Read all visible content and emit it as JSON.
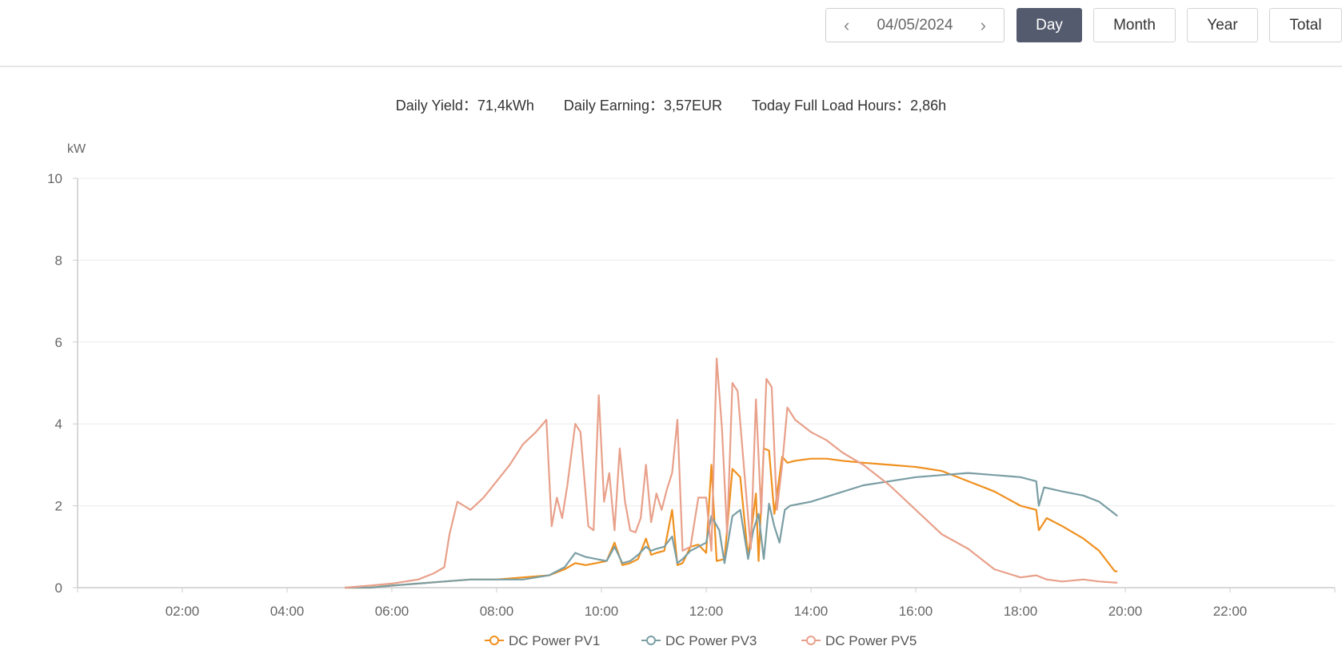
{
  "toolbar": {
    "date": "04/05/2024",
    "buttons": [
      "Day",
      "Month",
      "Year",
      "Total"
    ],
    "active": "Day"
  },
  "summary": [
    {
      "label": "Daily Yield：",
      "value": "71,4kWh"
    },
    {
      "label": "Daily Earning：",
      "value": "3,57EUR"
    },
    {
      "label": "Today Full Load Hours：",
      "value": "2,86h"
    }
  ],
  "chart_data": {
    "type": "line",
    "ylabel": "kW",
    "ylim": [
      0,
      10
    ],
    "yticks": [
      "0",
      "2",
      "4",
      "6",
      "8",
      "10"
    ],
    "xlim": [
      0,
      24
    ],
    "xticks": [
      "02:00",
      "04:00",
      "06:00",
      "08:00",
      "10:00",
      "12:00",
      "14:00",
      "16:00",
      "18:00",
      "20:00",
      "22:00"
    ],
    "grid": true,
    "legend_position": "bottom",
    "series": [
      {
        "name": "DC Power PV1",
        "color": "#f0901e",
        "x": [
          5.1,
          5.6,
          6.0,
          6.5,
          7.0,
          7.5,
          8.0,
          8.5,
          9.0,
          9.3,
          9.5,
          9.7,
          9.9,
          10.1,
          10.25,
          10.4,
          10.55,
          10.7,
          10.85,
          10.95,
          11.05,
          11.2,
          11.35,
          11.45,
          11.55,
          11.7,
          11.85,
          12.0,
          12.1,
          12.2,
          12.35,
          12.5,
          12.65,
          12.8,
          12.95,
          13.0,
          13.1,
          13.2,
          13.3,
          13.45,
          13.55,
          13.7,
          14.0,
          14.3,
          14.6,
          15.0,
          15.5,
          16.0,
          16.5,
          17.0,
          17.5,
          18.0,
          18.3,
          18.35,
          18.5,
          18.8,
          19.2,
          19.5,
          19.8,
          19.85
        ],
        "y": [
          0,
          0,
          0.05,
          0.1,
          0.15,
          0.2,
          0.2,
          0.25,
          0.3,
          0.45,
          0.6,
          0.55,
          0.6,
          0.65,
          1.1,
          0.55,
          0.6,
          0.7,
          1.2,
          0.8,
          0.85,
          0.9,
          1.9,
          0.55,
          0.6,
          1.0,
          1.05,
          0.85,
          3.0,
          0.65,
          0.7,
          2.9,
          2.7,
          0.75,
          2.3,
          0.65,
          3.4,
          3.35,
          1.8,
          3.2,
          3.05,
          3.1,
          3.15,
          3.15,
          3.1,
          3.05,
          3.0,
          2.95,
          2.85,
          2.6,
          2.35,
          2.0,
          1.9,
          1.4,
          1.7,
          1.5,
          1.2,
          0.9,
          0.4,
          0.4
        ]
      },
      {
        "name": "DC Power PV3",
        "color": "#7a9ea4",
        "x": [
          5.1,
          5.6,
          6.0,
          6.5,
          7.0,
          7.5,
          8.0,
          8.5,
          9.0,
          9.3,
          9.5,
          9.7,
          9.9,
          10.1,
          10.25,
          10.4,
          10.55,
          10.7,
          10.85,
          10.95,
          11.05,
          11.2,
          11.35,
          11.45,
          11.55,
          11.7,
          11.85,
          12.0,
          12.1,
          12.25,
          12.35,
          12.5,
          12.65,
          12.8,
          12.9,
          13.0,
          13.1,
          13.2,
          13.3,
          13.4,
          13.5,
          13.6,
          14.0,
          14.5,
          15.0,
          15.5,
          16.0,
          16.5,
          17.0,
          17.5,
          18.0,
          18.3,
          18.35,
          18.45,
          18.8,
          19.2,
          19.5,
          19.8,
          19.85
        ],
        "y": [
          0,
          0,
          0.05,
          0.1,
          0.15,
          0.2,
          0.2,
          0.2,
          0.3,
          0.5,
          0.85,
          0.75,
          0.7,
          0.65,
          1.0,
          0.6,
          0.65,
          0.8,
          1.0,
          0.9,
          0.95,
          1.0,
          1.25,
          0.6,
          0.7,
          0.9,
          1.0,
          1.1,
          1.75,
          1.4,
          0.6,
          1.75,
          1.9,
          0.7,
          1.4,
          1.8,
          0.7,
          2.05,
          1.5,
          1.1,
          1.9,
          2.0,
          2.1,
          2.3,
          2.5,
          2.6,
          2.7,
          2.75,
          2.8,
          2.75,
          2.7,
          2.6,
          2.0,
          2.45,
          2.35,
          2.25,
          2.1,
          1.8,
          1.75
        ]
      },
      {
        "name": "DC Power PV5",
        "color": "#e8a08a",
        "x": [
          5.1,
          5.6,
          6.0,
          6.5,
          6.8,
          7.0,
          7.1,
          7.25,
          7.5,
          7.75,
          8.0,
          8.25,
          8.5,
          8.75,
          8.95,
          9.05,
          9.15,
          9.25,
          9.35,
          9.5,
          9.6,
          9.75,
          9.85,
          9.95,
          10.05,
          10.15,
          10.25,
          10.35,
          10.45,
          10.55,
          10.65,
          10.75,
          10.85,
          10.95,
          11.05,
          11.15,
          11.25,
          11.35,
          11.45,
          11.55,
          11.7,
          11.85,
          12.0,
          12.1,
          12.2,
          12.3,
          12.4,
          12.5,
          12.6,
          12.75,
          12.85,
          12.95,
          13.05,
          13.15,
          13.25,
          13.35,
          13.45,
          13.55,
          13.7,
          14.0,
          14.3,
          14.6,
          15.0,
          15.5,
          16.0,
          16.5,
          17.0,
          17.5,
          18.0,
          18.3,
          18.5,
          18.8,
          19.2,
          19.5,
          19.85
        ],
        "y": [
          0,
          0.05,
          0.1,
          0.2,
          0.35,
          0.5,
          1.3,
          2.1,
          1.9,
          2.2,
          2.6,
          3.0,
          3.5,
          3.8,
          4.1,
          1.5,
          2.2,
          1.7,
          2.5,
          4.0,
          3.8,
          1.5,
          1.4,
          4.7,
          2.1,
          2.8,
          1.4,
          3.4,
          2.1,
          1.4,
          1.35,
          1.7,
          3.0,
          1.6,
          2.3,
          1.9,
          2.4,
          2.8,
          4.1,
          0.9,
          1.0,
          2.2,
          2.2,
          0.9,
          5.6,
          3.9,
          1.3,
          5.0,
          4.8,
          2.5,
          0.95,
          4.6,
          1.8,
          5.1,
          4.9,
          1.9,
          3.0,
          4.4,
          4.1,
          3.8,
          3.6,
          3.3,
          3.0,
          2.5,
          1.9,
          1.3,
          0.95,
          0.45,
          0.25,
          0.3,
          0.2,
          0.15,
          0.2,
          0.15,
          0.12
        ]
      }
    ]
  }
}
